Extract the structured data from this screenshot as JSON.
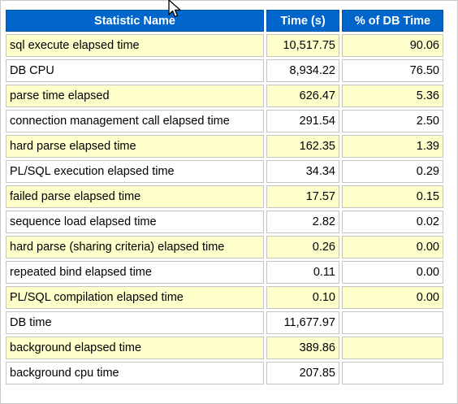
{
  "table": {
    "headers": [
      "Statistic Name",
      "Time (s)",
      "% of DB Time"
    ],
    "rows": [
      {
        "name": "sql execute elapsed time",
        "time": "10,517.75",
        "pct": "90.06"
      },
      {
        "name": "DB CPU",
        "time": "8,934.22",
        "pct": "76.50"
      },
      {
        "name": "parse time elapsed",
        "time": "626.47",
        "pct": "5.36"
      },
      {
        "name": "connection management call elapsed time",
        "time": "291.54",
        "pct": "2.50"
      },
      {
        "name": "hard parse elapsed time",
        "time": "162.35",
        "pct": "1.39"
      },
      {
        "name": "PL/SQL execution elapsed time",
        "time": "34.34",
        "pct": "0.29"
      },
      {
        "name": "failed parse elapsed time",
        "time": "17.57",
        "pct": "0.15"
      },
      {
        "name": "sequence load elapsed time",
        "time": "2.82",
        "pct": "0.02"
      },
      {
        "name": "hard parse (sharing criteria) elapsed time",
        "time": "0.26",
        "pct": "0.00"
      },
      {
        "name": "repeated bind elapsed time",
        "time": "0.11",
        "pct": "0.00"
      },
      {
        "name": "PL/SQL compilation elapsed time",
        "time": "0.10",
        "pct": "0.00"
      },
      {
        "name": "DB time",
        "time": "11,677.97",
        "pct": ""
      },
      {
        "name": "background elapsed time",
        "time": "389.86",
        "pct": ""
      },
      {
        "name": "background cpu time",
        "time": "207.85",
        "pct": ""
      }
    ]
  },
  "colors": {
    "header_bg": "#0066cc",
    "header_text": "#ffffff",
    "row_highlight": "#ffffcc",
    "row_plain": "#ffffff"
  },
  "icons": {
    "cursor": "mouse-pointer-icon"
  }
}
